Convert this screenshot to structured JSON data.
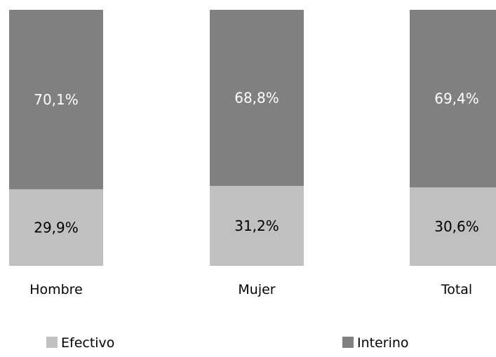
{
  "chart_data": {
    "type": "bar",
    "stacked": true,
    "percent_stacked": true,
    "categories": [
      "Hombre",
      "Mujer",
      "Total"
    ],
    "series": [
      {
        "name": "Efectivo",
        "values": [
          29.9,
          31.2,
          30.6
        ],
        "labels": [
          "29,9%",
          "31,2%",
          "30,6%"
        ],
        "color": "#c0c0c0",
        "label_color": "#000000"
      },
      {
        "name": "Interino",
        "values": [
          70.1,
          68.8,
          69.4
        ],
        "labels": [
          "70,1%",
          "68,8%",
          "69,4%"
        ],
        "color": "#808080",
        "label_color": "#ffffff"
      }
    ],
    "ylim": [
      0,
      100
    ],
    "grid": false,
    "legend_position": "bottom"
  }
}
